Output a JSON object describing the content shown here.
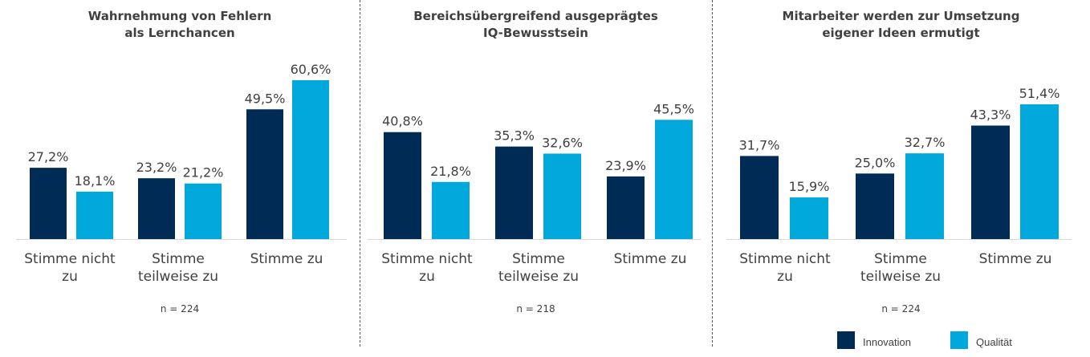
{
  "colors": {
    "innovation": "#002b54",
    "qualitaet": "#00a8dc",
    "axis": "#d9d9d9"
  },
  "legend": {
    "innovation_label": "Innovation",
    "qualitaet_label": "Qualität"
  },
  "chart_data": [
    {
      "type": "bar",
      "title": "Wahrnehmung von Fehlern\nals Lernchancen",
      "categories": [
        "Stimme nicht\nzu",
        "Stimme\nteilweise zu",
        "Stimme zu"
      ],
      "series": [
        {
          "name": "Innovation",
          "values": [
            27.2,
            23.2,
            49.5
          ],
          "labels": [
            "27,2%",
            "23,2%",
            "49,5%"
          ]
        },
        {
          "name": "Qualität",
          "values": [
            18.1,
            21.2,
            60.6
          ],
          "labels": [
            "18,1%",
            "21,2%",
            "60,6%"
          ]
        }
      ],
      "ylim": [
        0,
        60.6
      ],
      "note": "n = 224"
    },
    {
      "type": "bar",
      "title": "Bereichsübergreifend ausgeprägtes\nIQ-Bewusstsein",
      "categories": [
        "Stimme nicht\nzu",
        "Stimme\nteilweise zu",
        "Stimme zu"
      ],
      "series": [
        {
          "name": "Innovation",
          "values": [
            40.8,
            35.3,
            23.9
          ],
          "labels": [
            "40,8%",
            "35,3%",
            "23,9%"
          ]
        },
        {
          "name": "Qualität",
          "values": [
            21.8,
            32.6,
            45.5
          ],
          "labels": [
            "21,8%",
            "32,6%",
            "45,5%"
          ]
        }
      ],
      "ylim": [
        0,
        60.6
      ],
      "note": "n = 218"
    },
    {
      "type": "bar",
      "title": "Mitarbeiter werden zur Umsetzung\neigener Ideen ermutigt",
      "categories": [
        "Stimme nicht\nzu",
        "Stimme\nteilweise zu",
        "Stimme zu"
      ],
      "series": [
        {
          "name": "Innovation",
          "values": [
            31.7,
            25.0,
            43.3
          ],
          "labels": [
            "31,7%",
            "25,0%",
            "43,3%"
          ]
        },
        {
          "name": "Qualität",
          "values": [
            15.9,
            32.7,
            51.4
          ],
          "labels": [
            "15,9%",
            "32,7%",
            "51,4%"
          ]
        }
      ],
      "ylim": [
        0,
        60.6
      ],
      "note": "n = 224"
    }
  ]
}
